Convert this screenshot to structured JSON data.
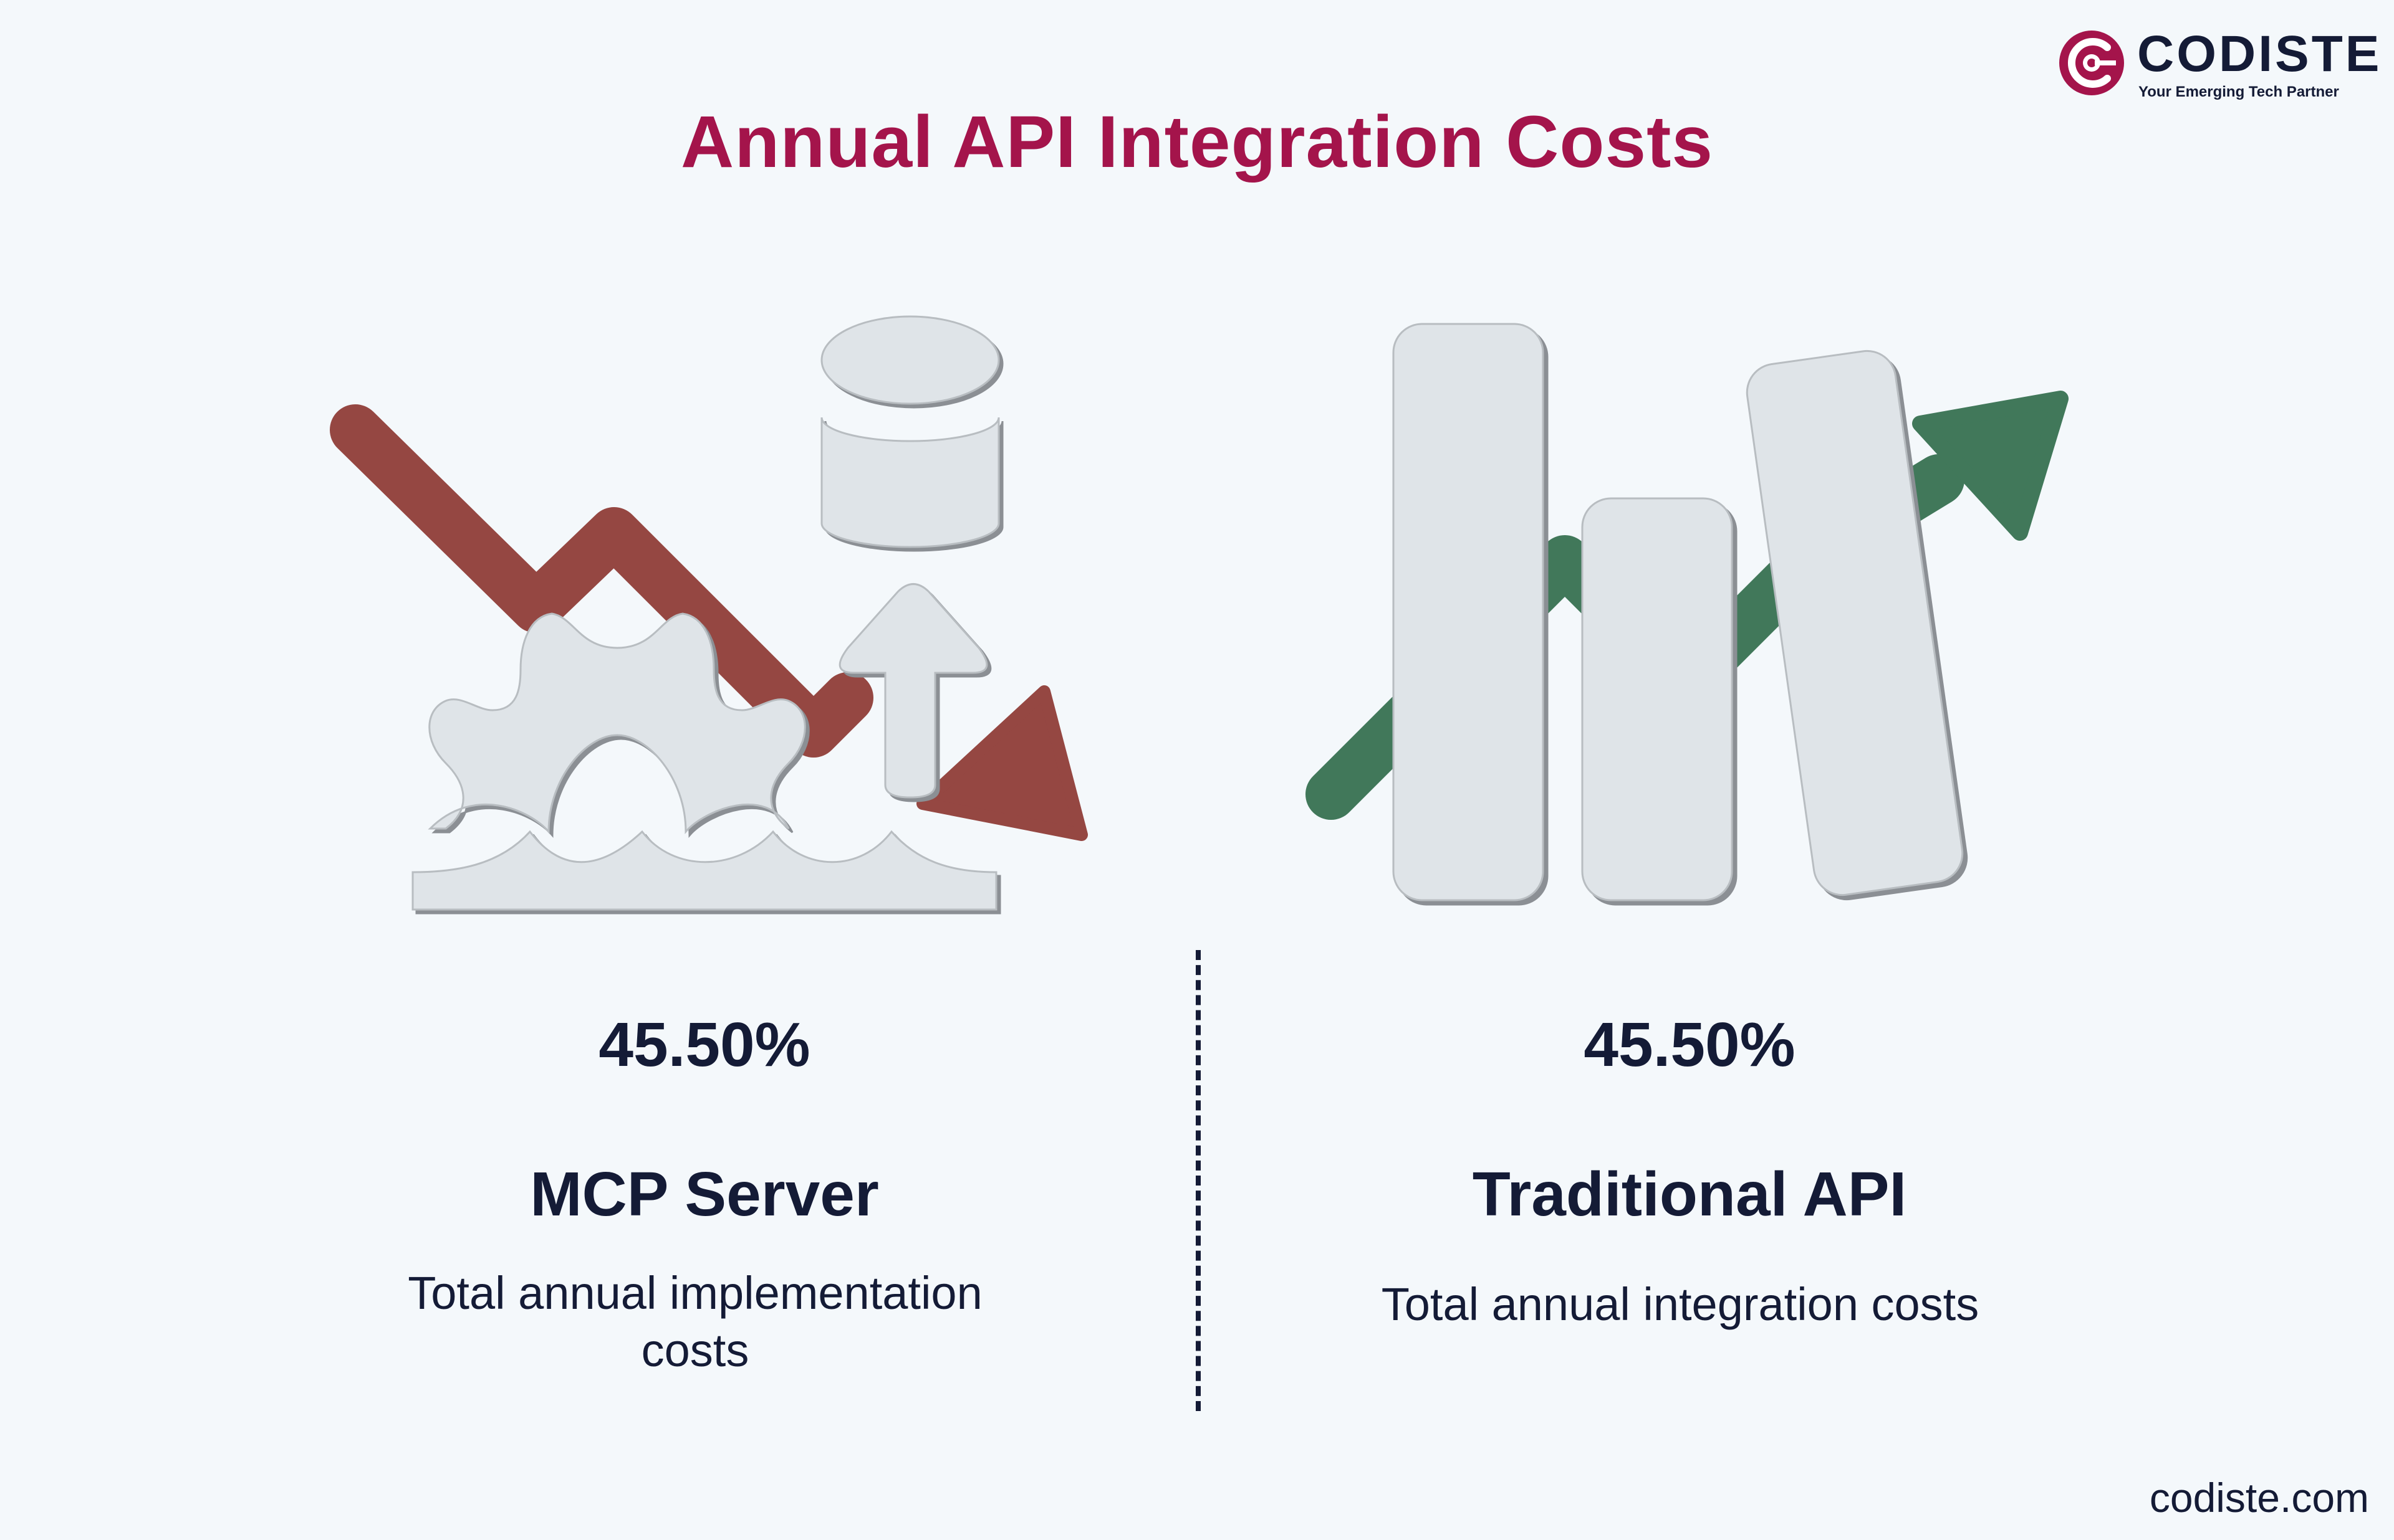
{
  "header": {
    "title": "Annual API Integration Costs",
    "brand": {
      "name": "CODISTE",
      "tagline": "Your Emerging Tech Partner",
      "accent_color": "#a4144b"
    }
  },
  "panels": [
    {
      "value": "45.50%",
      "label": "MCP Server",
      "description": "Total annual implementation costs",
      "description_lines": [
        "Total annual implementation",
        "costs"
      ],
      "icon": "cost-decrease-illustration",
      "arrow_color": "#954742"
    },
    {
      "value": "45.50%",
      "label": "Traditional API",
      "description": "Total annual integration costs",
      "icon": "cost-increase-illustration",
      "arrow_color": "#41785a"
    }
  ],
  "footer": {
    "website": "codiste.com"
  }
}
